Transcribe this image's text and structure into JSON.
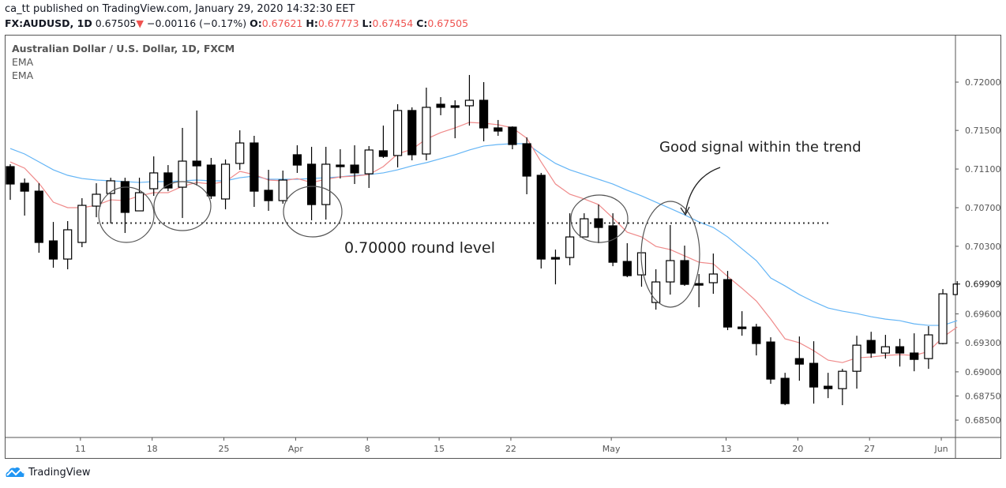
{
  "header": {
    "publisher": "ca_tt",
    "published_text": "published on TradingView.com, January 29, 2020 14:32:30 EET",
    "symbol": "FX:AUDUSD, 1D",
    "last": "0.67505",
    "change": "−0.00116 (−0.17%)",
    "o_label": "O:",
    "o": "0.67621",
    "h_label": "H:",
    "h": "0.67773",
    "l_label": "L:",
    "l": "0.67454",
    "c_label": "C:",
    "c": "0.67505",
    "down_color": "#ef5350"
  },
  "legend": {
    "title": "Australian Dollar / U.S. Dollar, 1D, FXCM",
    "ind1": "EMA",
    "ind2": "EMA"
  },
  "branding": {
    "name": "TradingView",
    "icon": "tradingview-cloud-logo"
  },
  "chart_data": {
    "type": "candlestick",
    "ylim": [
      0.6842,
      0.7235
    ],
    "y_ticks": [
      "0.72000",
      "0.71500",
      "0.71100",
      "0.70700",
      "0.70300",
      "0.69600",
      "0.69300",
      "0.69000",
      "0.68750",
      "0.68500"
    ],
    "y_tick_values": [
      0.72,
      0.715,
      0.711,
      0.707,
      0.703,
      0.696,
      0.693,
      0.69,
      0.6875,
      0.685
    ],
    "last_price_label": "0.69909",
    "x_ticks": [
      "11",
      "18",
      "25",
      "Apr",
      "8",
      "15",
      "22",
      "May",
      "13",
      "20",
      "27",
      "Jun"
    ],
    "candles": [
      [
        0.71125,
        0.7115,
        0.70781,
        0.70945
      ],
      [
        0.70953,
        0.71002,
        0.70618,
        0.70871
      ],
      [
        0.70871,
        0.70953,
        0.70233,
        0.7034
      ],
      [
        0.70356,
        0.70552,
        0.70078,
        0.70168
      ],
      [
        0.70168,
        0.70561,
        0.70062,
        0.70471
      ],
      [
        0.7034,
        0.70798,
        0.70291,
        0.70724
      ],
      [
        0.70716,
        0.70953,
        0.70601,
        0.70839
      ],
      [
        0.70847,
        0.7101,
        0.70536,
        0.70978
      ],
      [
        0.7097,
        0.7101,
        0.70438,
        0.70651
      ],
      [
        0.70667,
        0.7101,
        0.70667,
        0.70855
      ],
      [
        0.70896,
        0.71231,
        0.70822,
        0.7106
      ],
      [
        0.7106,
        0.71141,
        0.70871,
        0.70904
      ],
      [
        0.70912,
        0.71526,
        0.70593,
        0.71182
      ],
      [
        0.71182,
        0.71706,
        0.70929,
        0.71133
      ],
      [
        0.71141,
        0.71215,
        0.7079,
        0.70822
      ],
      [
        0.7079,
        0.71199,
        0.70683,
        0.7115
      ],
      [
        0.71158,
        0.71501,
        0.71092,
        0.7137
      ],
      [
        0.7137,
        0.71444,
        0.70708,
        0.70871
      ],
      [
        0.7088,
        0.71092,
        0.70667,
        0.70773
      ],
      [
        0.70773,
        0.71084,
        0.70741,
        0.70986
      ],
      [
        0.71248,
        0.71346,
        0.7106,
        0.71141
      ],
      [
        0.7115,
        0.7133,
        0.70569,
        0.70732
      ],
      [
        0.70732,
        0.7133,
        0.70577,
        0.7115
      ],
      [
        0.71141,
        0.71305,
        0.71002,
        0.71125
      ],
      [
        0.71141,
        0.71346,
        0.70945,
        0.7106
      ],
      [
        0.71051,
        0.71338,
        0.70904,
        0.71297
      ],
      [
        0.71289,
        0.7155,
        0.71215,
        0.71231
      ],
      [
        0.7124,
        0.71771,
        0.71117,
        0.71706
      ],
      [
        0.71706,
        0.71739,
        0.7119,
        0.71248
      ],
      [
        0.71256,
        0.71943,
        0.7119,
        0.71739
      ],
      [
        0.71771,
        0.71845,
        0.71657,
        0.71739
      ],
      [
        0.71755,
        0.71812,
        0.71419,
        0.71747
      ],
      [
        0.71755,
        0.72074,
        0.7155,
        0.71812
      ],
      [
        0.71812,
        0.72,
        0.71387,
        0.71526
      ],
      [
        0.71526,
        0.71608,
        0.71444,
        0.71493
      ],
      [
        0.71534,
        0.71542,
        0.71305,
        0.71354
      ],
      [
        0.71362,
        0.71428,
        0.70839,
        0.71027
      ],
      [
        0.71035,
        0.7106,
        0.7007,
        0.70168
      ],
      [
        0.70184,
        0.70266,
        0.69906,
        0.70175
      ],
      [
        0.70184,
        0.70642,
        0.70103,
        0.70397
      ],
      [
        0.70397,
        0.70642,
        0.70397,
        0.70585
      ],
      [
        0.70585,
        0.70732,
        0.70332,
        0.70495
      ],
      [
        0.70512,
        0.70642,
        0.70094,
        0.70135
      ],
      [
        0.70143,
        0.70332,
        0.6998,
        0.69996
      ],
      [
        0.70004,
        0.70233,
        0.69882,
        0.70233
      ],
      [
        0.69718,
        0.70062,
        0.69644,
        0.69931
      ],
      [
        0.69931,
        0.7052,
        0.698,
        0.70152
      ],
      [
        0.70152,
        0.70307,
        0.6989,
        0.69906
      ],
      [
        0.69914,
        0.70013,
        0.69669,
        0.69906
      ],
      [
        0.69923,
        0.70225,
        0.69808,
        0.70013
      ],
      [
        0.69955,
        0.70045,
        0.69432,
        0.69464
      ],
      [
        0.69464,
        0.69628,
        0.69374,
        0.69455
      ],
      [
        0.69464,
        0.69497,
        0.6917,
        0.69293
      ],
      [
        0.69309,
        0.69358,
        0.68876,
        0.68925
      ],
      [
        0.68933,
        0.6899,
        0.68655,
        0.68671
      ],
      [
        0.69137,
        0.69366,
        0.68908,
        0.6908
      ],
      [
        0.69088,
        0.69317,
        0.68671,
        0.68843
      ],
      [
        0.68851,
        0.6899,
        0.68728,
        0.68826
      ],
      [
        0.68826,
        0.69031,
        0.68655,
        0.69006
      ],
      [
        0.69006,
        0.69374,
        0.68826,
        0.69276
      ],
      [
        0.69325,
        0.69415,
        0.69145,
        0.69195
      ],
      [
        0.69195,
        0.69383,
        0.69137,
        0.6926
      ],
      [
        0.6926,
        0.69342,
        0.69055,
        0.69195
      ],
      [
        0.69195,
        0.69399,
        0.69006,
        0.69129
      ],
      [
        0.69137,
        0.69473,
        0.69031,
        0.69383
      ],
      [
        0.69293,
        0.69857,
        0.69285,
        0.69808
      ],
      [
        0.698,
        0.69939,
        0.698,
        0.69909
      ]
    ],
    "ema_fast": [
      0.71174,
      0.71109,
      0.70953,
      0.70757,
      0.707,
      0.707,
      0.70724,
      0.70781,
      0.70773,
      0.70822,
      0.70855,
      0.70855,
      0.70921,
      0.70961,
      0.70945,
      0.7097,
      0.71076,
      0.71043,
      0.70986,
      0.70978,
      0.71002,
      0.70961,
      0.70994,
      0.71019,
      0.71027,
      0.71043,
      0.71125,
      0.71256,
      0.71305,
      0.71411,
      0.71477,
      0.71526,
      0.71583,
      0.71575,
      0.71559,
      0.71526,
      0.71419,
      0.71174,
      0.70945,
      0.70839,
      0.7079,
      0.70732,
      0.70593,
      0.70446,
      0.70397,
      0.70299,
      0.70266,
      0.70201,
      0.70135,
      0.70119,
      0.69988,
      0.69865,
      0.69734,
      0.69546,
      0.69342,
      0.69301,
      0.69219,
      0.69121,
      0.69096,
      0.69145,
      0.69154,
      0.6917,
      0.69178,
      0.6917,
      0.69211,
      0.69358,
      0.69464
    ],
    "ema_slow": [
      0.71313,
      0.71256,
      0.71174,
      0.71092,
      0.71035,
      0.71002,
      0.70986,
      0.70978,
      0.7097,
      0.70961,
      0.7097,
      0.7097,
      0.70978,
      0.70986,
      0.70978,
      0.70978,
      0.7101,
      0.71027,
      0.70994,
      0.70994,
      0.70994,
      0.71002,
      0.7101,
      0.71019,
      0.71035,
      0.71043,
      0.7106,
      0.71092,
      0.71133,
      0.71166,
      0.71207,
      0.71248,
      0.71297,
      0.71338,
      0.71354,
      0.71362,
      0.71362,
      0.71256,
      0.71158,
      0.71092,
      0.71043,
      0.70994,
      0.70945,
      0.7088,
      0.70822,
      0.70757,
      0.70692,
      0.70626,
      0.70552,
      0.70495,
      0.70397,
      0.70274,
      0.70152,
      0.69972,
      0.6989,
      0.698,
      0.69726,
      0.69661,
      0.69628,
      0.69604,
      0.69571,
      0.69546,
      0.6953,
      0.69497,
      0.69481,
      0.69481,
      0.6953
    ],
    "colors": {
      "ema_fast": "#ef8a8a",
      "ema_slow": "#64b5f6",
      "bear": "#000000",
      "bull": "#ffffff"
    },
    "dotted_level": 0.7054,
    "annotations": {
      "level_text": "0.70000 round level",
      "signal_text": "Good signal within the trend"
    },
    "grid": false
  }
}
